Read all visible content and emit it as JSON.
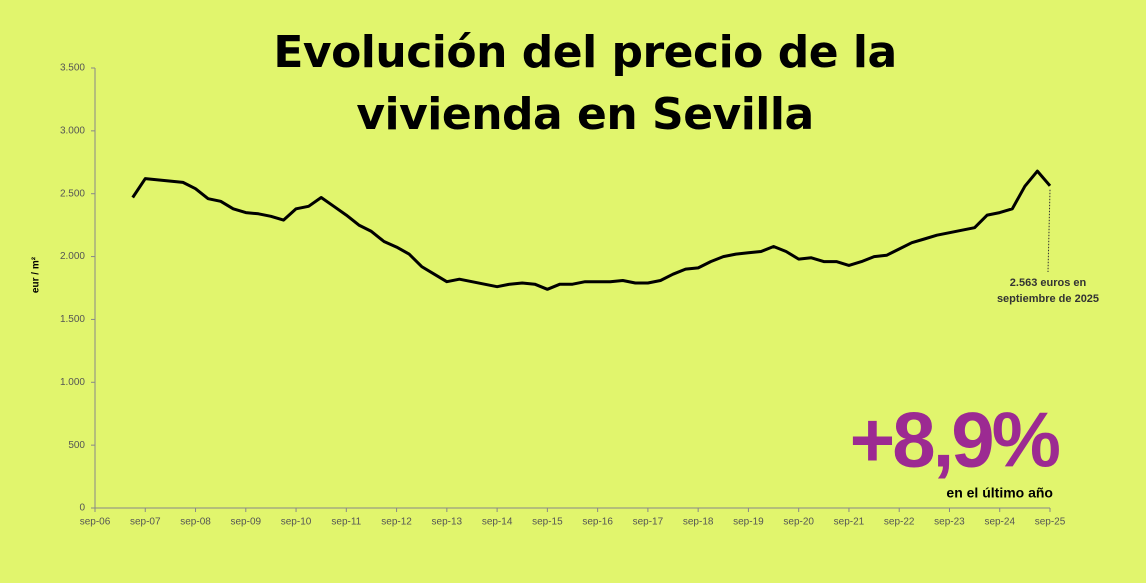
{
  "chart_data": {
    "type": "line",
    "title": "Evolución del precio de la vivienda en Sevilla",
    "y_label": "eur / m²",
    "categories": [
      "sep-06",
      null,
      null,
      null,
      "sep-07",
      null,
      null,
      null,
      "sep-08",
      null,
      null,
      null,
      "sep-09",
      null,
      null,
      null,
      "sep-10",
      null,
      null,
      null,
      "sep-11",
      null,
      null,
      null,
      "sep-12",
      null,
      null,
      null,
      "sep-13",
      null,
      null,
      null,
      "sep-14",
      null,
      null,
      null,
      "sep-15",
      null,
      null,
      null,
      "sep-16",
      null,
      null,
      null,
      "sep-17",
      null,
      null,
      null,
      "sep-18",
      null,
      null,
      null,
      "sep-19",
      null,
      null,
      null,
      "sep-20",
      null,
      null,
      null,
      "sep-21",
      null,
      null,
      null,
      "sep-22",
      null,
      null,
      null,
      "sep-23",
      null,
      null,
      null,
      "sep-24",
      null,
      null,
      null,
      "sep-25"
    ],
    "series": [
      {
        "name": "Sevilla",
        "color": "#000000",
        "values": [
          null,
          null,
          null,
          2470,
          2620,
          2610,
          2600,
          2590,
          2540,
          2460,
          2440,
          2380,
          2350,
          2340,
          2320,
          2290,
          2380,
          2400,
          2470,
          2400,
          2330,
          2250,
          2200,
          2120,
          2075,
          2020,
          1920,
          1860,
          1800,
          1820,
          1800,
          1780,
          1760,
          1780,
          1790,
          1780,
          1740,
          1780,
          1780,
          1800,
          1800,
          1800,
          1810,
          1790,
          1790,
          1810,
          1860,
          1900,
          1910,
          1960,
          2000,
          2020,
          2030,
          2040,
          2080,
          2040,
          1980,
          1990,
          1960,
          1960,
          1930,
          1960,
          2000,
          2010,
          2060,
          2110,
          2140,
          2170,
          2190,
          2210,
          2230,
          2330,
          2350,
          2380,
          2560,
          2680,
          2563
        ]
      }
    ],
    "ylim": [
      0,
      3500
    ],
    "yticks": [
      0,
      500,
      {
        "value": 1000,
        "label": "1.000"
      },
      {
        "value": 1500,
        "label": "1.500"
      },
      {
        "value": 2000,
        "label": "2.000"
      },
      {
        "value": 2500,
        "label": "2.500"
      },
      {
        "value": 3000,
        "label": "3.000"
      },
      {
        "value": 3500,
        "label": "3.500"
      }
    ],
    "grid": false,
    "annotation_lines": [
      "2.563 euros en",
      "septiembre de 2025"
    ],
    "highlight": "+8,9%",
    "highlight_color": "#9c2a92",
    "highlight_caption": "en el último año"
  }
}
